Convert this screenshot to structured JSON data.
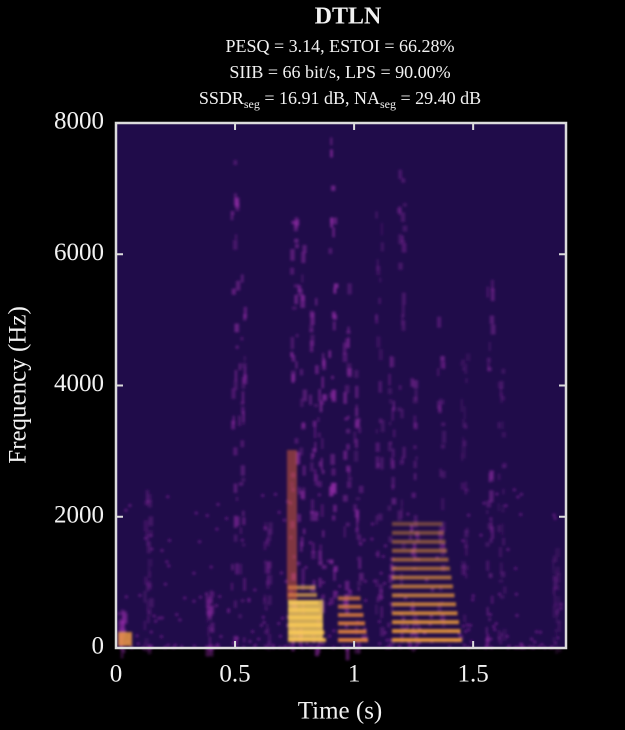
{
  "chart_data": {
    "type": "spectrogram",
    "title": "DTLN",
    "subtitle_lines": [
      [
        {
          "text": "PESQ = 3.14, ESTOI = 66.28%"
        }
      ],
      [
        {
          "text": "SIIB = 66 bit/s, LPS = 90.00%"
        }
      ],
      [
        {
          "text": "SSDR"
        },
        {
          "text": "seg",
          "sub": true
        },
        {
          "text": " = 16.91 dB, NA"
        },
        {
          "text": "seg",
          "sub": true
        },
        {
          "text": " = 29.40 dB"
        }
      ]
    ],
    "xlabel": "Time (s)",
    "ylabel": "Frequency (Hz)",
    "xlim": [
      0,
      1.89
    ],
    "ylim": [
      0,
      8000
    ],
    "xticks": [
      0,
      0.5,
      1,
      1.5
    ],
    "yticks": [
      0,
      2000,
      4000,
      6000,
      8000
    ]
  }
}
